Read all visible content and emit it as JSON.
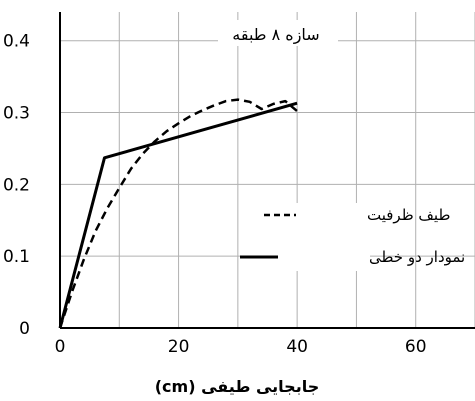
{
  "chart_data": {
    "type": "line",
    "title": "سازه ۸ طبقه",
    "xlabel": "جابجایی طیفی (cm)",
    "ylabel": "",
    "xlim": [
      0,
      70
    ],
    "ylim": [
      0,
      0.44
    ],
    "grid": true,
    "x_ticks": [
      {
        "value": 0,
        "label": "0"
      },
      {
        "value": 20,
        "label": "20"
      },
      {
        "value": 40,
        "label": "40"
      },
      {
        "value": 60,
        "label": "60"
      }
    ],
    "y_ticks": [
      {
        "value": 0,
        "label": "0"
      },
      {
        "value": 0.1,
        "label": "0.1"
      },
      {
        "value": 0.2,
        "label": "0.2"
      },
      {
        "value": 0.3,
        "label": "0.3"
      },
      {
        "value": 0.4,
        "label": "0.4"
      }
    ],
    "legend_position": "right",
    "series": [
      {
        "name": "طیف ظرفیت",
        "style": "dashed",
        "x": [
          0,
          2,
          4,
          6,
          8,
          10,
          12,
          14,
          16,
          18,
          20,
          22,
          24,
          26,
          28,
          30,
          32,
          34,
          36,
          38,
          40
        ],
        "y": [
          0,
          0.05,
          0.095,
          0.135,
          0.167,
          0.195,
          0.222,
          0.243,
          0.26,
          0.274,
          0.285,
          0.295,
          0.303,
          0.31,
          0.316,
          0.318,
          0.315,
          0.305,
          0.312,
          0.316,
          0.302
        ]
      },
      {
        "name": "نمودار دو خطی",
        "style": "solid",
        "x": [
          0,
          7.5,
          40
        ],
        "y": [
          0,
          0.237,
          0.313
        ]
      }
    ]
  }
}
